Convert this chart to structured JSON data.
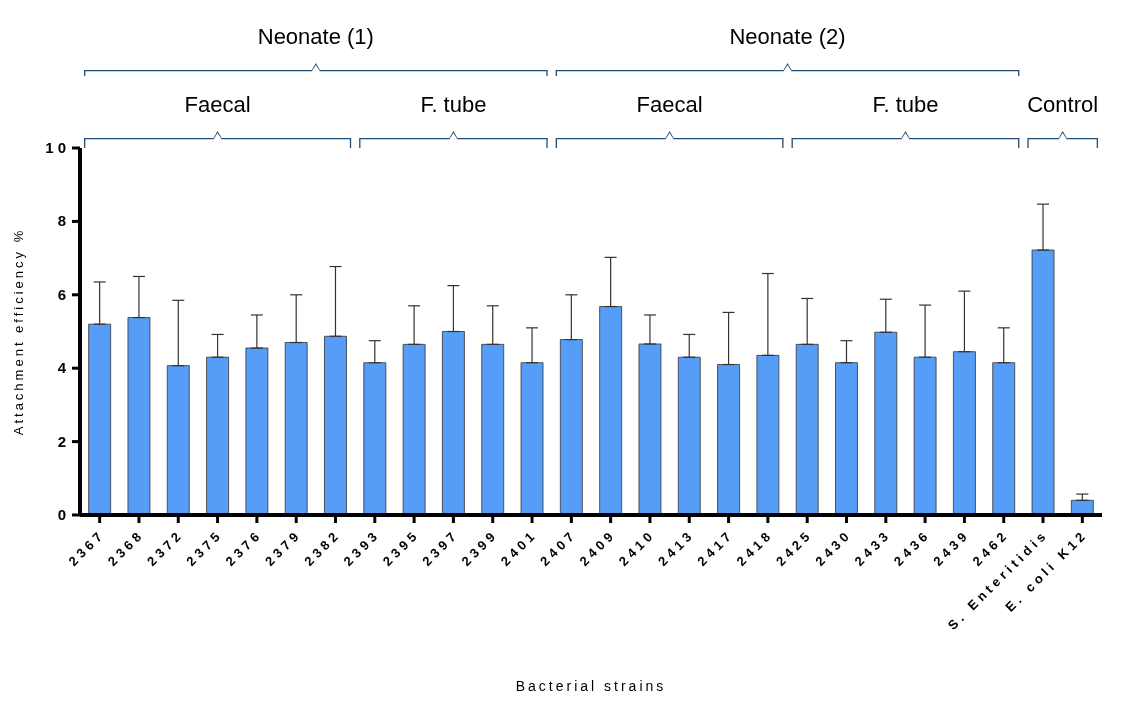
{
  "chart_data": {
    "type": "bar",
    "xlabel": "Bacterial strains",
    "ylabel": "Attachment efficiency %",
    "categories": [
      "2367",
      "2368",
      "2372",
      "2375",
      "2376",
      "2379",
      "2382",
      "2393",
      "2395",
      "2397",
      "2399",
      "2401",
      "2407",
      "2409",
      "2410",
      "2413",
      "2417",
      "2418",
      "2425",
      "2430",
      "2433",
      "2436",
      "2439",
      "2462",
      "S. Enteritidis",
      "E. coli K12"
    ],
    "values": [
      5.2,
      5.38,
      4.07,
      4.3,
      4.55,
      4.7,
      4.87,
      4.15,
      4.65,
      5.0,
      4.65,
      4.15,
      4.78,
      5.68,
      4.66,
      4.3,
      4.1,
      4.35,
      4.65,
      4.15,
      4.98,
      4.3,
      4.45,
      4.15,
      7.22,
      0.4
    ],
    "errors": [
      [
        5.2,
        6.35
      ],
      [
        5.38,
        6.5
      ],
      [
        4.07,
        5.85
      ],
      [
        4.3,
        4.92
      ],
      [
        4.55,
        5.45
      ],
      [
        4.7,
        6.0
      ],
      [
        4.87,
        6.77
      ],
      [
        4.15,
        4.75
      ],
      [
        4.65,
        5.7
      ],
      [
        5.0,
        6.25
      ],
      [
        4.65,
        5.7
      ],
      [
        4.15,
        5.1
      ],
      [
        4.78,
        6.0
      ],
      [
        5.68,
        7.02
      ],
      [
        4.66,
        5.45
      ],
      [
        4.3,
        4.92
      ],
      [
        4.1,
        5.52
      ],
      [
        4.35,
        6.58
      ],
      [
        4.65,
        5.9
      ],
      [
        4.15,
        4.75
      ],
      [
        4.98,
        5.88
      ],
      [
        4.3,
        5.72
      ],
      [
        4.45,
        6.1
      ],
      [
        4.15,
        5.1
      ],
      [
        7.22,
        8.47
      ],
      [
        0.4,
        0.57
      ]
    ],
    "color": "#559df7",
    "ylim": [
      0,
      10
    ],
    "yticks": [
      0,
      2,
      4,
      6,
      8,
      {
        "value": 10,
        "label": "1 0"
      }
    ],
    "grid": false,
    "legend": false,
    "annotations": [
      "Neonate (1)",
      "Neonate (2)",
      "Faecal",
      "F. tube",
      "Faecal",
      "F. tube",
      "Control"
    ]
  }
}
